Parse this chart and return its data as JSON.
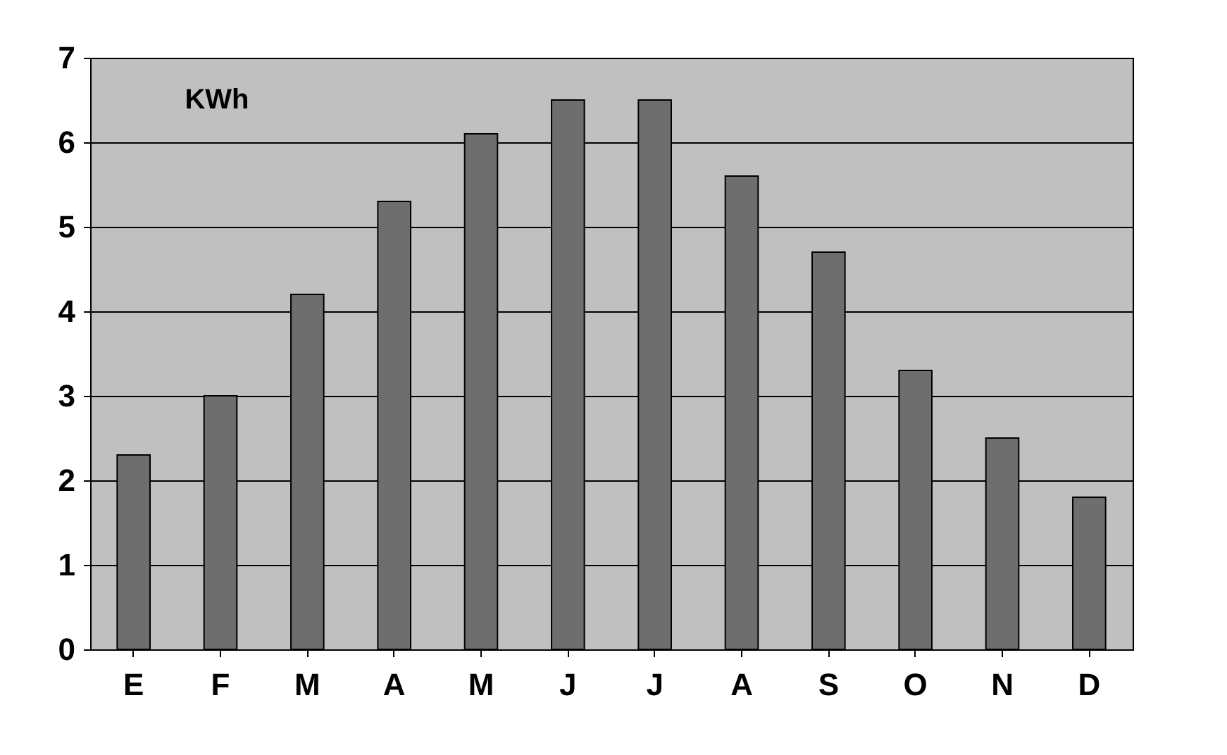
{
  "chart_data": {
    "type": "bar",
    "annotations": [
      "KWh"
    ],
    "categories": [
      "E",
      "F",
      "M",
      "A",
      "M",
      "J",
      "J",
      "A",
      "S",
      "O",
      "N",
      "D"
    ],
    "values": [
      2.3,
      3.0,
      4.2,
      5.3,
      6.1,
      6.5,
      6.5,
      5.6,
      4.7,
      3.3,
      2.5,
      1.8
    ],
    "color": "#6e6e6e",
    "ylim": [
      0,
      7
    ],
    "yticks": [
      0,
      1,
      2,
      3,
      4,
      5,
      6,
      7
    ],
    "grid": "y"
  }
}
